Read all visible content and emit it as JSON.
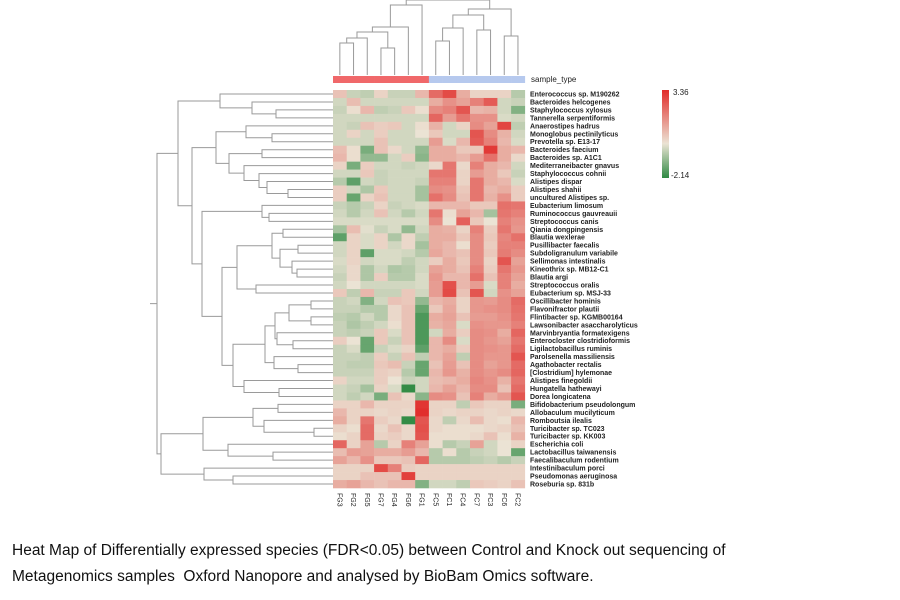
{
  "chart_data": {
    "type": "heatmap",
    "title": "",
    "columns": [
      "FG3",
      "FG2",
      "FG5",
      "FG7",
      "FG4",
      "FG6",
      "FG1",
      "FC5",
      "FC1",
      "FC4",
      "FC7",
      "FC3",
      "FC6",
      "FC2"
    ],
    "column_annotation": {
      "label": "sample_type",
      "groups": [
        {
          "columns": [
            "FG3",
            "FG2",
            "FG5",
            "FG7",
            "FG4",
            "FG6",
            "FG1"
          ],
          "color": "#f0686a"
        },
        {
          "columns": [
            "FC5",
            "FC1",
            "FC4",
            "FC7",
            "FC3",
            "FC6",
            "FC2"
          ],
          "color": "#b6c9ee"
        }
      ]
    },
    "rows": [
      "Enterococcus sp. M190262",
      "Bacteroides helcogenes",
      "Staphylococcus xylosus",
      "Tannerella serpentiformis",
      "Anaerostipes hadrus",
      "Monoglobus pectinilyticus",
      "Prevotella sp. E13-17",
      "Bacteroides faecium",
      "Bacteroides sp. A1C1",
      "Mediterraneibacter gnavus",
      "Staphylococcus cohnii",
      "Alistipes dispar",
      "Alistipes shahii",
      "uncultured Alistipes sp.",
      "Eubacterium limosum",
      "Ruminococcus gauvreauii",
      "Streptococcus canis",
      "Qiania dongpingensis",
      "Blautia wexlerae",
      "Pusillibacter faecalis",
      "Subdoligranulum variabile",
      "Sellimonas intestinalis",
      "Kineothrix sp. MB12-C1",
      "Blautia argi",
      "Streptococcus oralis",
      "Eubacterium sp. MSJ-33",
      "Oscillibacter hominis",
      "Flavonifractor plautii",
      "Flintibacter sp. KGMB00164",
      "Lawsonibacter asaccharolyticus",
      "Marvinbryantia formatexigens",
      "Enterocloster clostridioformis",
      "Ligilactobacillus ruminis",
      "Parolsenella massiliensis",
      "Agathobacter rectalis",
      "[Clostridium] hylemonae",
      "Alistipes finegoldii",
      "Hungatella hathewayi",
      "Dorea longicatena",
      "Bifidobacterium pseudolongum",
      "Allobaculum mucilyticum",
      "Romboutsia ilealis",
      "Turicibacter sp. TC023",
      "Turicibacter sp. KK003",
      "Escherichia coli",
      "Lactobacillus taiwanensis",
      "Faecalibaculum rodentium",
      "Intestinibaculum porci",
      "Pseudomonas aeruginosa",
      "Roseburia sp. 831b"
    ],
    "values": [
      [
        0.6,
        -0.4,
        -0.5,
        0.3,
        -0.4,
        -0.4,
        0.8,
        2.2,
        2.8,
        1.0,
        0.3,
        0.3,
        0.3,
        -0.6
      ],
      [
        -0.3,
        0.7,
        -0.3,
        -0.3,
        -0.3,
        -0.3,
        -0.3,
        1.0,
        1.5,
        1.2,
        1.8,
        2.5,
        -0.3,
        -0.4
      ],
      [
        -0.4,
        0.1,
        0.8,
        -0.5,
        -0.4,
        0.5,
        0.1,
        1.6,
        1.8,
        2.6,
        0.8,
        0.9,
        -0.3,
        -1.2
      ],
      [
        -0.3,
        -0.3,
        -0.3,
        -0.3,
        -0.3,
        -0.3,
        -0.3,
        2.3,
        1.3,
        2.0,
        1.5,
        1.5,
        -0.2,
        -0.3
      ],
      [
        -0.3,
        -0.4,
        0.6,
        0.4,
        0.5,
        -0.3,
        0.1,
        0.9,
        -0.3,
        0.3,
        1.6,
        1.2,
        2.9,
        -0.5
      ],
      [
        -0.3,
        0.3,
        -0.3,
        0.4,
        -0.3,
        -0.3,
        0.0,
        0.5,
        -0.3,
        -0.3,
        2.6,
        1.6,
        0.9,
        -0.3
      ],
      [
        -0.3,
        -0.3,
        -0.3,
        0.6,
        -0.3,
        -0.3,
        -0.3,
        1.3,
        -0.2,
        0.8,
        2.5,
        1.8,
        0.8,
        -0.2
      ],
      [
        0.7,
        0.1,
        -1.3,
        0.6,
        0.2,
        -0.3,
        -1.0,
        1.0,
        1.0,
        0.5,
        0.5,
        3.1,
        1.0,
        0.8
      ],
      [
        0.8,
        0.1,
        -1.0,
        -1.0,
        -0.3,
        0.4,
        -1.1,
        1.0,
        1.0,
        0.8,
        1.3,
        2.1,
        1.0,
        0.2
      ],
      [
        0.3,
        -1.3,
        0.4,
        -0.3,
        -0.3,
        -0.4,
        -0.3,
        0.2,
        2.0,
        0.2,
        1.8,
        1.0,
        0.8,
        -0.3
      ],
      [
        -0.3,
        -0.3,
        0.5,
        -0.4,
        -0.3,
        -0.3,
        -0.3,
        2.0,
        2.0,
        0.3,
        1.3,
        1.0,
        0.5,
        -0.4
      ],
      [
        -0.6,
        -1.6,
        -0.3,
        -0.4,
        -0.3,
        -0.3,
        -0.4,
        1.8,
        1.8,
        0.3,
        2.0,
        1.0,
        0.8,
        -0.2
      ],
      [
        0.4,
        -0.3,
        -0.7,
        0.5,
        -0.3,
        -0.3,
        -0.8,
        1.6,
        1.5,
        0.5,
        2.0,
        0.8,
        1.0,
        0.4
      ],
      [
        0.4,
        -1.5,
        0.3,
        0.6,
        -0.3,
        -0.3,
        -0.8,
        2.1,
        1.6,
        0.6,
        2.0,
        0.9,
        1.5,
        0.4
      ],
      [
        -0.4,
        -0.6,
        -0.4,
        0.3,
        -0.4,
        -0.3,
        -0.2,
        0.8,
        0.8,
        0.8,
        0.5,
        0.5,
        2.1,
        2.0
      ],
      [
        -0.3,
        -0.6,
        -0.3,
        0.6,
        -0.3,
        -0.6,
        -0.3,
        2.0,
        0.1,
        1.2,
        0.8,
        -0.8,
        2.0,
        1.8
      ],
      [
        -0.2,
        -0.2,
        -0.2,
        -0.2,
        -0.2,
        -0.2,
        -0.2,
        1.6,
        0.0,
        2.4,
        0.5,
        0.0,
        1.8,
        1.5
      ],
      [
        -0.8,
        0.7,
        -0.1,
        -0.4,
        -0.2,
        -1.0,
        -0.3,
        1.0,
        0.9,
        0.3,
        1.8,
        0.4,
        2.0,
        1.4
      ],
      [
        -1.6,
        0.3,
        -0.2,
        0.3,
        -0.7,
        0.2,
        -0.5,
        1.0,
        1.0,
        0.5,
        1.6,
        0.5,
        1.7,
        2.1
      ],
      [
        -0.3,
        0.3,
        -0.2,
        0.3,
        -0.3,
        0.2,
        -0.8,
        1.0,
        0.8,
        0.1,
        1.6,
        0.4,
        1.8,
        1.8
      ],
      [
        -0.3,
        0.3,
        -1.6,
        -0.2,
        -0.2,
        -0.3,
        -0.6,
        1.1,
        0.8,
        0.6,
        1.6,
        0.5,
        1.9,
        1.6
      ],
      [
        -0.2,
        0.3,
        -0.3,
        -0.2,
        -0.2,
        -0.5,
        -0.3,
        0.4,
        1.0,
        0.5,
        1.6,
        0.3,
        2.6,
        1.2
      ],
      [
        -0.3,
        0.2,
        -0.7,
        -0.3,
        -0.7,
        -0.6,
        -0.3,
        1.2,
        1.0,
        0.6,
        1.8,
        0.4,
        2.0,
        1.4
      ],
      [
        -0.4,
        0.2,
        -0.7,
        0.4,
        -0.6,
        -0.6,
        -0.2,
        1.4,
        0.8,
        0.8,
        2.1,
        0.6,
        1.8,
        1.2
      ],
      [
        -0.3,
        0.0,
        -0.3,
        -0.3,
        -0.3,
        -0.3,
        -0.2,
        1.3,
        2.7,
        0.8,
        1.3,
        -0.2,
        1.8,
        1.0
      ],
      [
        0.5,
        -0.5,
        0.8,
        -0.4,
        -0.4,
        0.5,
        -0.3,
        1.3,
        2.8,
        0.6,
        2.6,
        -0.3,
        1.5,
        1.2
      ],
      [
        -0.4,
        -0.3,
        -1.2,
        -0.3,
        0.6,
        0.5,
        -1.0,
        0.8,
        1.0,
        0.3,
        1.4,
        1.3,
        1.6,
        2.2
      ],
      [
        -0.4,
        -0.4,
        -0.6,
        -0.6,
        0.2,
        0.6,
        -1.5,
        0.5,
        1.1,
        0.3,
        1.4,
        1.5,
        1.6,
        2.1
      ],
      [
        -0.5,
        -0.6,
        -0.3,
        -0.6,
        0.2,
        0.6,
        -1.8,
        1.0,
        1.2,
        0.6,
        1.3,
        1.3,
        1.5,
        2.0
      ],
      [
        -0.4,
        -0.7,
        -0.5,
        -0.3,
        0.1,
        0.6,
        -1.8,
        0.9,
        1.1,
        -0.2,
        1.5,
        1.4,
        1.4,
        1.8
      ],
      [
        -0.4,
        -0.5,
        -0.4,
        0.5,
        -0.2,
        0.6,
        -1.8,
        -0.3,
        1.0,
        0.4,
        1.6,
        1.5,
        1.0,
        2.3
      ],
      [
        0.4,
        0.0,
        -1.5,
        0.5,
        -0.4,
        0.6,
        -1.8,
        0.8,
        1.6,
        -0.2,
        1.6,
        1.4,
        1.2,
        2.0
      ],
      [
        -0.4,
        -0.2,
        -1.5,
        -0.4,
        -0.2,
        0.3,
        -1.6,
        0.8,
        1.0,
        0.4,
        1.6,
        1.5,
        1.4,
        2.2
      ],
      [
        -0.4,
        -0.4,
        -0.5,
        0.4,
        -0.4,
        0.6,
        -0.5,
        0.8,
        1.2,
        -0.5,
        1.6,
        1.4,
        1.4,
        2.6
      ],
      [
        -0.4,
        -0.5,
        -0.5,
        0.5,
        0.7,
        -0.4,
        -1.5,
        0.6,
        1.3,
        0.6,
        1.6,
        1.2,
        1.4,
        2.2
      ],
      [
        -0.4,
        -0.4,
        -0.4,
        0.4,
        0.3,
        -0.6,
        -1.5,
        0.8,
        1.4,
        0.9,
        1.6,
        1.4,
        1.6,
        2.3
      ],
      [
        0.3,
        -0.3,
        -0.3,
        0.4,
        0.0,
        -0.4,
        -0.3,
        0.7,
        0.8,
        1.0,
        1.7,
        1.5,
        0.9,
        2.0
      ],
      [
        -0.3,
        -0.4,
        -0.8,
        0.3,
        -0.2,
        -2.1,
        -0.3,
        0.8,
        1.2,
        0.8,
        1.6,
        1.6,
        0.6,
        2.2
      ],
      [
        -0.3,
        -0.5,
        -0.3,
        -1.3,
        0.6,
        0.2,
        -1.1,
        1.6,
        1.5,
        0.6,
        1.8,
        1.0,
        1.3,
        2.6
      ],
      [
        0.3,
        0.3,
        0.8,
        0.3,
        0.3,
        0.3,
        3.2,
        0.3,
        0.3,
        -0.5,
        0.5,
        0.3,
        0.3,
        -1.3
      ],
      [
        0.8,
        0.3,
        0.3,
        0.2,
        0.3,
        0.2,
        3.3,
        0.3,
        0.2,
        0.3,
        0.3,
        0.2,
        0.3,
        0.2
      ],
      [
        1.0,
        0.3,
        2.0,
        0.4,
        0.2,
        -2.1,
        2.6,
        0.2,
        -0.5,
        0.2,
        0.7,
        0.2,
        0.1,
        0.8
      ],
      [
        0.3,
        0.1,
        2.2,
        0.2,
        0.6,
        0.2,
        2.7,
        0.2,
        0.1,
        0.1,
        0.1,
        0.2,
        0.3,
        0.6
      ],
      [
        0.1,
        0.3,
        2.2,
        0.3,
        0.4,
        0.2,
        2.6,
        0.1,
        0.1,
        0.1,
        0.2,
        0.6,
        0.1,
        0.9
      ],
      [
        2.3,
        0.3,
        1.2,
        -0.6,
        0.3,
        1.8,
        1.2,
        0.1,
        -0.6,
        -0.4,
        1.2,
        -0.3,
        0.0,
        0.3
      ],
      [
        0.7,
        1.3,
        1.2,
        1.0,
        1.0,
        1.3,
        0.8,
        -0.6,
        0.1,
        -0.6,
        -0.4,
        -0.3,
        0.0,
        -1.5
      ],
      [
        1.2,
        0.8,
        1.5,
        0.5,
        0.5,
        0.6,
        2.3,
        -0.6,
        -0.6,
        -0.6,
        -0.5,
        -0.4,
        -0.6,
        -0.4
      ],
      [
        0.3,
        0.3,
        0.3,
        2.8,
        1.8,
        0.4,
        0.3,
        0.3,
        0.3,
        0.3,
        0.3,
        0.3,
        0.3,
        0.3
      ],
      [
        0.3,
        0.3,
        0.6,
        0.6,
        0.6,
        3.0,
        0.3,
        0.3,
        0.3,
        0.3,
        0.3,
        0.3,
        0.3,
        0.3
      ],
      [
        1.0,
        1.2,
        0.8,
        0.6,
        0.8,
        0.8,
        -1.2,
        -0.3,
        -0.3,
        -0.5,
        0.5,
        0.4,
        0.3,
        0.6
      ]
    ],
    "color_scale": {
      "min": -2.14,
      "max": 3.36,
      "min_label": "-2.14",
      "max_label": "3.36",
      "low_color": "#2f8a43",
      "mid_color": "#ebe3d4",
      "high_color": "#e12c2a"
    },
    "row_dendrogram": true,
    "column_dendrogram": true,
    "legend_placement": "right"
  },
  "caption": {
    "line1": "Heat Map of Differentially expressed species (FDR<0.05) between Control and Knock out sequencing of",
    "line2": "Metagenomics samples  Oxford Nanopore and analysed by BioBam Omics software."
  }
}
